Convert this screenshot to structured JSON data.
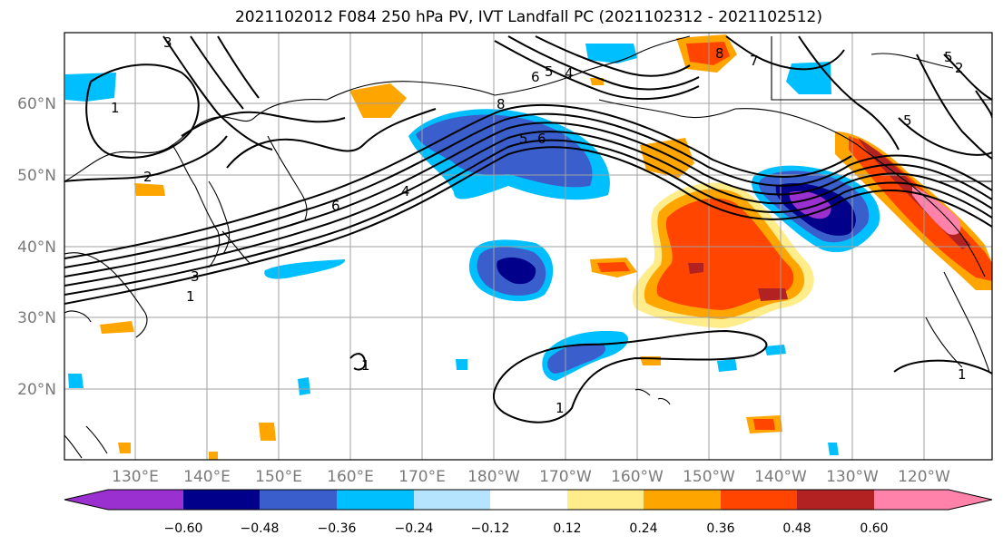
{
  "title": "2021102012 F084 250 hPa PV, IVT Landfall PC (2021102312 - 2021102512)",
  "map": {
    "lat_labels": [
      "60°N",
      "50°N",
      "40°N",
      "30°N",
      "20°N"
    ],
    "lon_labels": [
      "130°E",
      "140°E",
      "150°E",
      "160°E",
      "170°E",
      "180°W",
      "170°W",
      "160°W",
      "150°W",
      "140°W",
      "130°W",
      "120°W"
    ],
    "contour_labels": [
      "1",
      "2",
      "3",
      "4",
      "5",
      "6",
      "7",
      "8"
    ]
  },
  "colorbar": {
    "colors": [
      "#9b30d0",
      "#00008b",
      "#3a5fcd",
      "#00bfff",
      "#b4e4ff",
      "#ffffff",
      "#ffec8b",
      "#ffa500",
      "#ff4500",
      "#b22222",
      "#ff82ab"
    ],
    "tick_labels": [
      "−0.60",
      "−0.48",
      "−0.36",
      "−0.24",
      "−0.12",
      "0.12",
      "0.24",
      "0.36",
      "0.48",
      "0.60"
    ]
  }
}
